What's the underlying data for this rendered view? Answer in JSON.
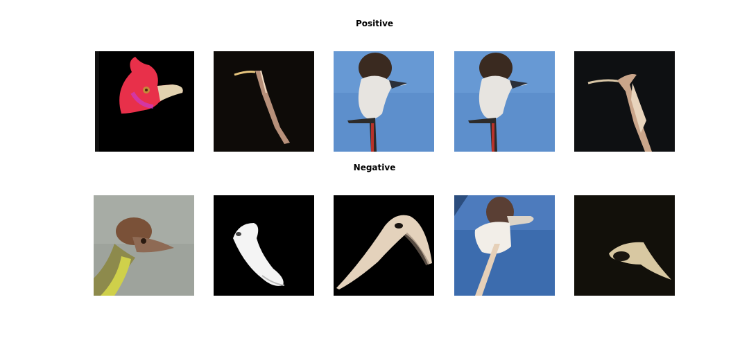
{
  "rows": {
    "positive": {
      "title": "Positive"
    },
    "negative": {
      "title": "Negative"
    }
  }
}
